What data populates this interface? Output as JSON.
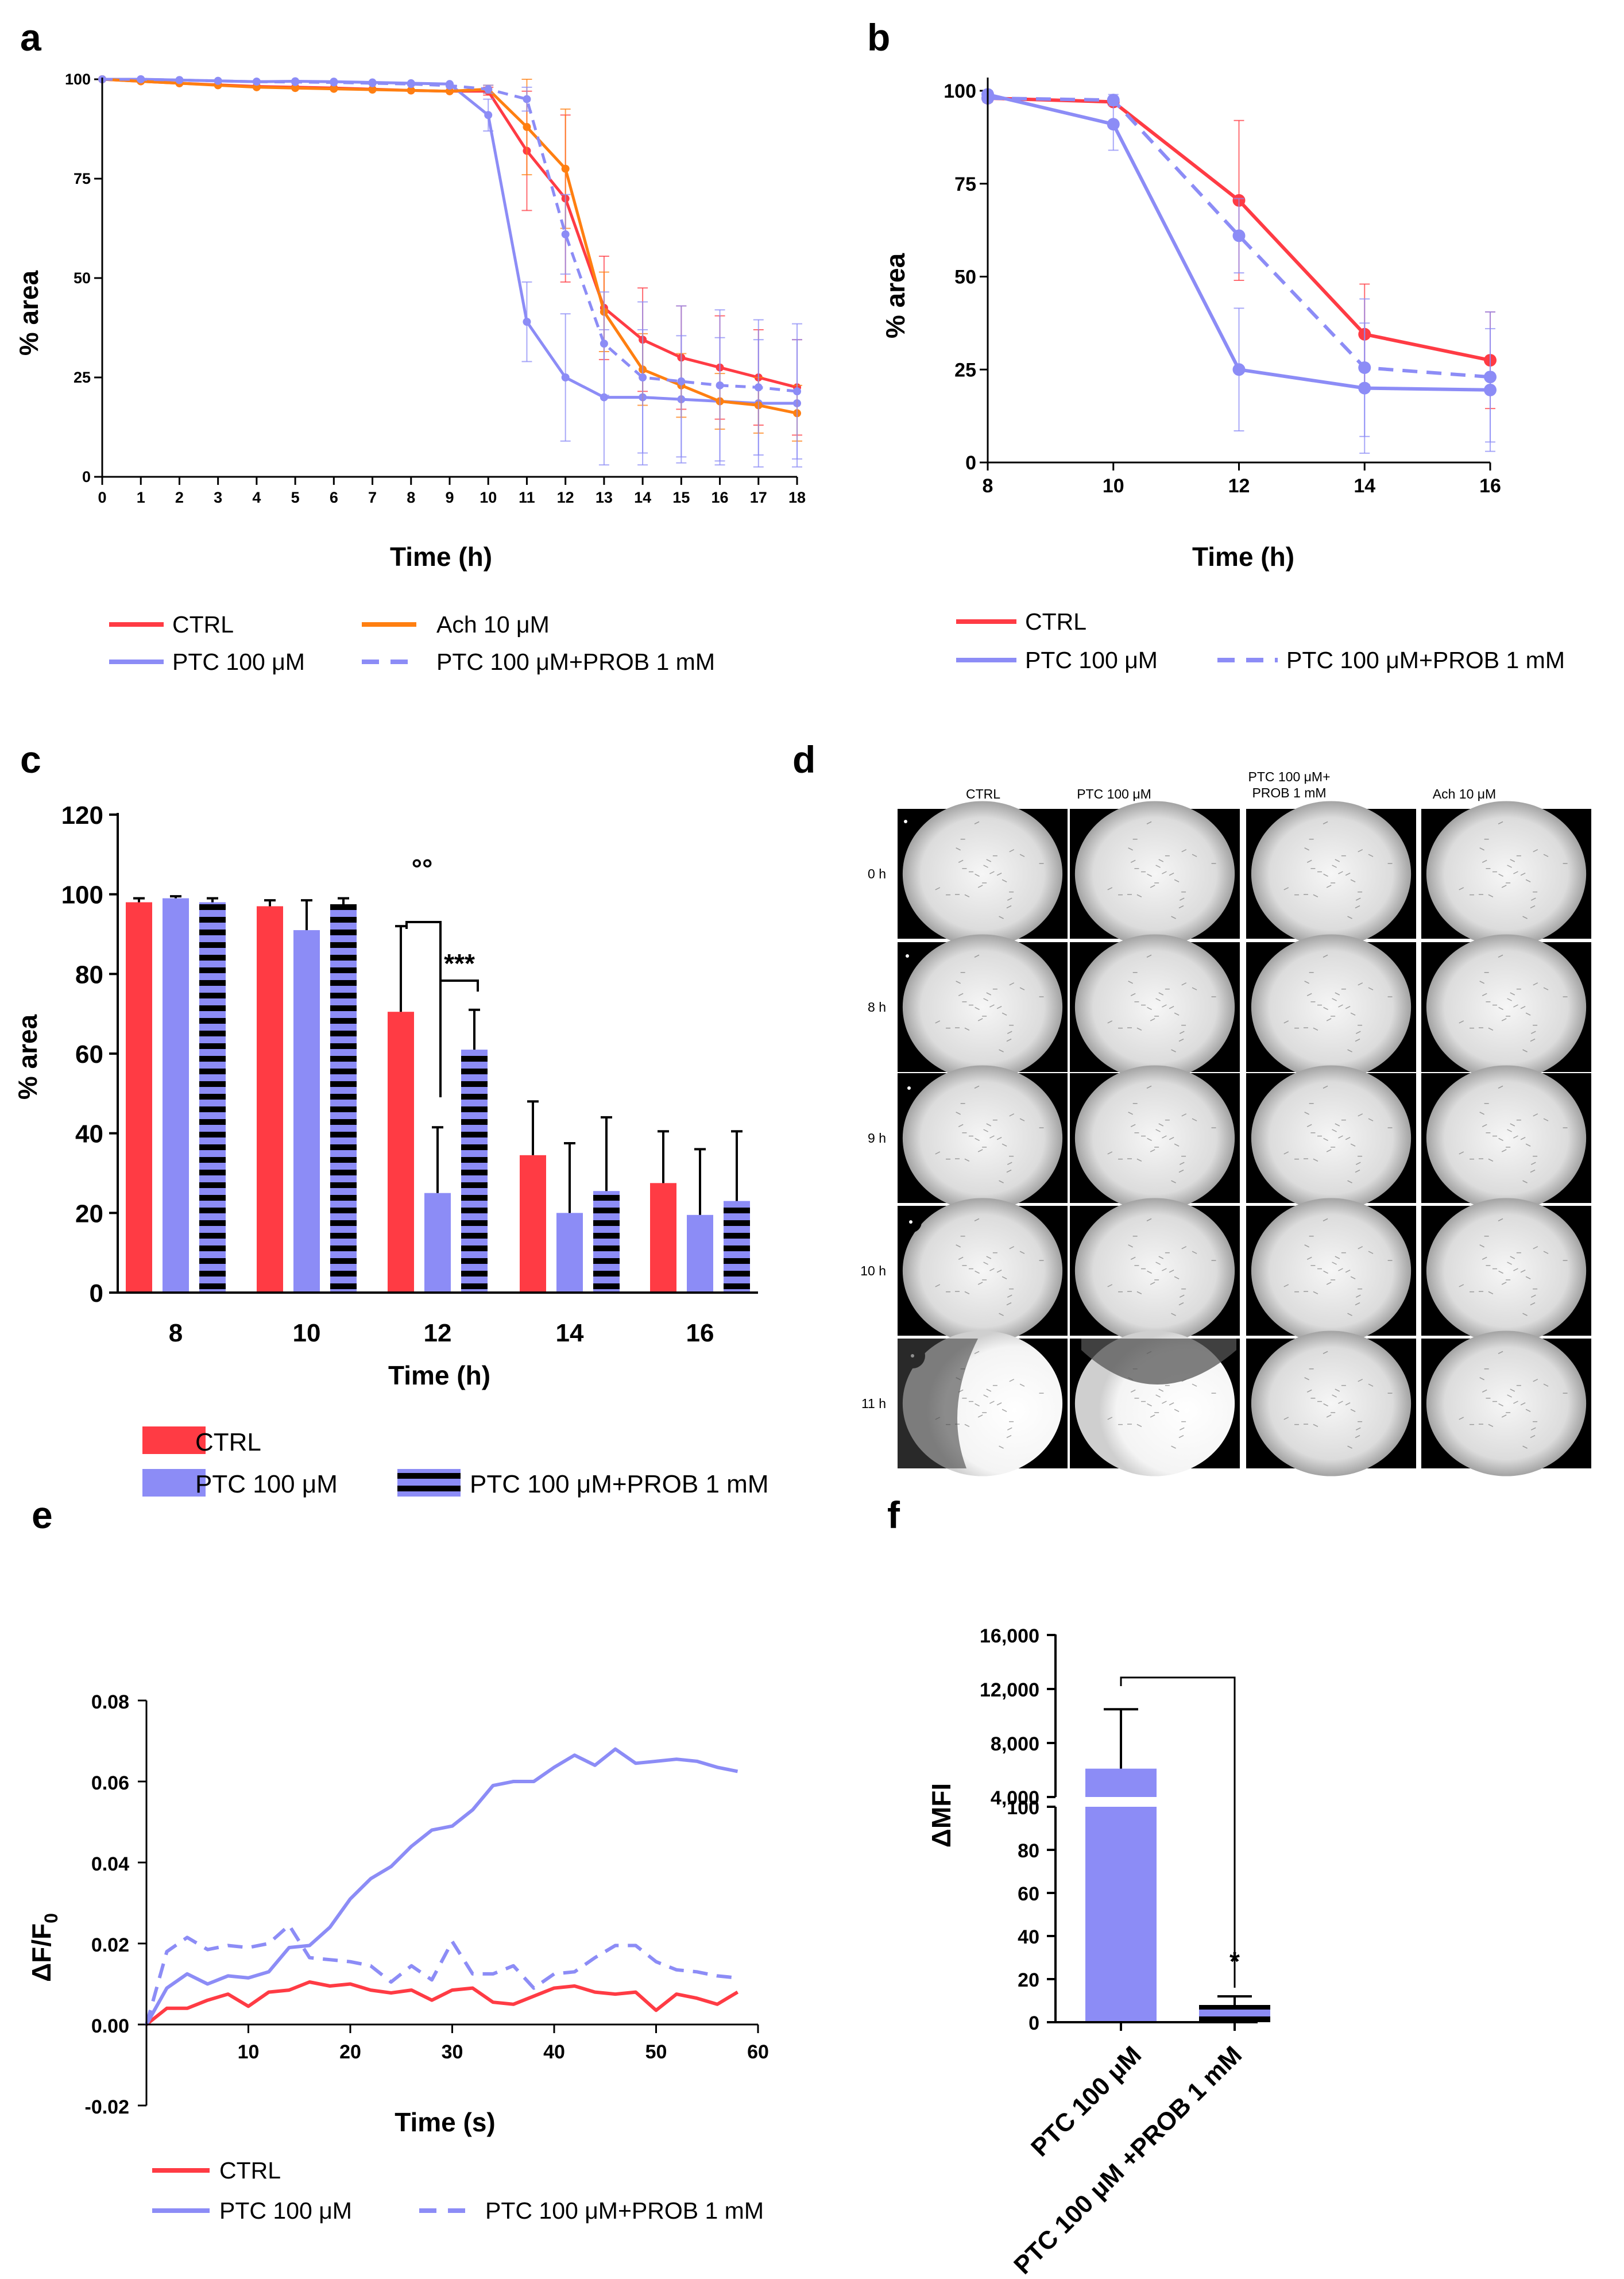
{
  "colors": {
    "ctrl": "#ff3b44",
    "ptc": "#8c8cf6",
    "ach": "#ff7f11",
    "axis": "#000000",
    "black": "#000000"
  },
  "panels": {
    "a": "a",
    "b": "b",
    "c": "c",
    "d": "d",
    "e": "e",
    "f": "f"
  },
  "chart_data": [
    {
      "panel": "a",
      "type": "line",
      "xlabel": "Time (h)",
      "ylabel": "% area",
      "xlim": [
        0,
        18
      ],
      "ylim": [
        0,
        100
      ],
      "x": [
        0,
        1,
        2,
        3,
        4,
        5,
        6,
        7,
        8,
        9,
        10,
        11,
        12,
        13,
        14,
        15,
        16,
        17,
        18
      ],
      "yticks": [
        0,
        25,
        50,
        75,
        100
      ],
      "series": [
        {
          "name": "CTRL",
          "color": "ctrl",
          "dash": false,
          "values": [
            100,
            99.5,
            99,
            98.6,
            98.2,
            98,
            97.8,
            97.5,
            97.2,
            97,
            97,
            82,
            70,
            42.5,
            34.5,
            30,
            27.5,
            25,
            22.5
          ],
          "errors": [
            0,
            0,
            0,
            0,
            0,
            0,
            0,
            0,
            0,
            0,
            1,
            15,
            21,
            13,
            13,
            13,
            13,
            12,
            12
          ]
        },
        {
          "name": "PTC 100 μM",
          "color": "ptc",
          "dash": false,
          "values": [
            100,
            100,
            99.8,
            99.6,
            99.4,
            99.5,
            99.4,
            99.2,
            99,
            98.8,
            91,
            39,
            25,
            20,
            20,
            19.5,
            19,
            18.5,
            18.5
          ],
          "errors": [
            0,
            0,
            0,
            0,
            0,
            0,
            0,
            0,
            0,
            0,
            4,
            10,
            16,
            17,
            17,
            16,
            16,
            16,
            16
          ]
        },
        {
          "name": "Ach 10 μM",
          "color": "ach",
          "dash": false,
          "values": [
            100,
            99.5,
            99,
            98.5,
            98,
            97.8,
            97.6,
            97.4,
            97.2,
            97,
            97.5,
            88,
            77.5,
            41.5,
            27,
            23,
            19,
            18,
            16
          ],
          "errors": [
            0,
            0,
            0,
            0,
            0,
            0,
            0,
            0,
            0,
            0,
            1,
            12,
            15,
            10,
            9,
            8,
            7,
            7,
            7
          ]
        },
        {
          "name": "PTC 100 μM+PROB 1 mM",
          "color": "ptc",
          "dash": true,
          "values": [
            100,
            100,
            99.8,
            99.6,
            99.4,
            99.3,
            99.2,
            99,
            98.8,
            98.4,
            97.5,
            95,
            61,
            33.5,
            25,
            24,
            23,
            22.5,
            21.5
          ],
          "errors": [
            0,
            0,
            0,
            0,
            0,
            0,
            0,
            0,
            0,
            0,
            1,
            3,
            10,
            13,
            19,
            19,
            19,
            17,
            17
          ]
        }
      ]
    },
    {
      "panel": "b",
      "type": "line",
      "xlabel": "Time (h)",
      "ylabel": "% area",
      "xlim": [
        8,
        16
      ],
      "ylim": [
        0,
        100
      ],
      "x": [
        8,
        10,
        12,
        14,
        16
      ],
      "yticks": [
        0,
        25,
        50,
        75,
        100
      ],
      "series": [
        {
          "name": "CTRL",
          "color": "ctrl",
          "dash": false,
          "values": [
            98,
            97,
            70.5,
            34.5,
            27.5
          ],
          "errors": [
            1,
            1,
            21.5,
            13.5,
            13
          ]
        },
        {
          "name": "PTC 100 μM",
          "color": "ptc",
          "dash": false,
          "values": [
            99,
            91,
            25,
            20,
            19.5
          ],
          "errors": [
            1,
            7,
            16.5,
            17.5,
            16.5
          ]
        },
        {
          "name": "PTC 100 μM+PROB 1 mM",
          "color": "ptc",
          "dash": true,
          "values": [
            98,
            97.5,
            61,
            25.5,
            23
          ],
          "errors": [
            1,
            1.5,
            10,
            18.5,
            17.5
          ]
        }
      ]
    },
    {
      "panel": "c",
      "type": "bar",
      "xlabel": "Time (h)",
      "ylabel": "% area",
      "categories": [
        "8",
        "10",
        "12",
        "14",
        "16"
      ],
      "ylim": [
        0,
        120
      ],
      "yticks": [
        0,
        20,
        40,
        60,
        80,
        100,
        120
      ],
      "series": [
        {
          "name": "CTRL",
          "color": "ctrl",
          "pattern": "solid",
          "values": [
            98,
            97,
            70.5,
            34.5,
            27.5
          ],
          "errors": [
            1,
            1.5,
            21.5,
            13.5,
            13
          ]
        },
        {
          "name": "PTC 100 μM",
          "color": "ptc",
          "pattern": "solid",
          "values": [
            99,
            91,
            25,
            20,
            19.5
          ],
          "errors": [
            0.5,
            7.5,
            16.5,
            17.5,
            16.5
          ]
        },
        {
          "name": "PTC 100 μM+PROB 1 mM",
          "color": "ptc",
          "pattern": "striped",
          "values": [
            98,
            97.5,
            61,
            25.5,
            23
          ],
          "errors": [
            1,
            1.5,
            10,
            18.5,
            17.5
          ]
        }
      ],
      "annotations": [
        {
          "text": "°°",
          "category": "12",
          "between": [
            "CTRL",
            "PTC 100 μM"
          ]
        },
        {
          "text": "***",
          "category": "12",
          "between": [
            "PTC 100 μM",
            "PTC 100 μM+PROB 1 mM"
          ]
        }
      ]
    },
    {
      "panel": "e",
      "type": "line",
      "xlabel": "Time (s)",
      "ylabel": "ΔF/F",
      "ylabel_sub": "0",
      "xlim": [
        0,
        60
      ],
      "ylim": [
        -0.02,
        0.08
      ],
      "xticks": [
        10,
        20,
        30,
        40,
        50,
        60
      ],
      "yticks": [
        "-0.02",
        "0.00",
        "0.02",
        "0.04",
        "0.06",
        "0.08"
      ],
      "x": [
        0,
        2,
        4,
        6,
        8,
        10,
        12,
        14,
        16,
        18,
        20,
        22,
        24,
        26,
        28,
        30,
        32,
        34,
        36,
        38,
        40,
        42,
        44,
        46,
        48,
        50,
        52,
        54,
        56,
        58
      ],
      "series": [
        {
          "name": "CTRL",
          "color": "ctrl",
          "dash": false,
          "values": [
            0,
            0.004,
            0.004,
            0.006,
            0.0075,
            0.0045,
            0.008,
            0.0085,
            0.0105,
            0.0095,
            0.01,
            0.0085,
            0.0078,
            0.0085,
            0.006,
            0.0085,
            0.009,
            0.0055,
            0.005,
            0.007,
            0.009,
            0.0095,
            0.008,
            0.0075,
            0.008,
            0.0035,
            0.0075,
            0.0065,
            0.005,
            0.008
          ]
        },
        {
          "name": "PTC 100 μM",
          "color": "ptc",
          "dash": false,
          "values": [
            0,
            0.009,
            0.0125,
            0.01,
            0.012,
            0.0115,
            0.013,
            0.019,
            0.0195,
            0.024,
            0.031,
            0.036,
            0.039,
            0.044,
            0.048,
            0.049,
            0.053,
            0.059,
            0.06,
            0.06,
            0.0635,
            0.0665,
            0.064,
            0.068,
            0.0645,
            0.065,
            0.0655,
            0.065,
            0.0635,
            0.0625
          ]
        },
        {
          "name": "PTC 100 μM+PROB 1 mM",
          "color": "ptc",
          "dash": true,
          "values": [
            0,
            0.018,
            0.0215,
            0.0185,
            0.0195,
            0.019,
            0.02,
            0.0245,
            0.0165,
            0.016,
            0.0155,
            0.0145,
            0.0105,
            0.0145,
            0.011,
            0.0205,
            0.0125,
            0.0125,
            0.0145,
            0.009,
            0.0125,
            0.013,
            0.0165,
            0.0195,
            0.0195,
            0.0155,
            0.0135,
            0.013,
            0.012,
            0.0115
          ]
        }
      ]
    },
    {
      "panel": "f",
      "type": "bar",
      "ylabel": "ΔMFI",
      "axis_break": true,
      "upper_ylim": [
        4000,
        16000
      ],
      "upper_yticks": [
        "4,000",
        "8,000",
        "12,000",
        "16,000"
      ],
      "lower_ylim": [
        0,
        100
      ],
      "lower_yticks": [
        "0",
        "20",
        "40",
        "60",
        "80",
        "100"
      ],
      "categories": [
        "PTC 100 μM",
        "PTC 100 μM +PROB 1 mM"
      ],
      "values": [
        6100,
        8
      ],
      "errors": [
        4400,
        4
      ],
      "significance": "*"
    }
  ],
  "legends": {
    "a": [
      "CTRL",
      "Ach 10 μM",
      "PTC 100 μM",
      "PTC 100 μM+PROB 1 mM"
    ],
    "b": [
      "CTRL",
      "PTC 100 μM",
      "PTC 100 μM+PROB 1 mM"
    ],
    "c": [
      "CTRL",
      "PTC 100 μM",
      "PTC 100 μM+PROB 1 mM"
    ],
    "e": [
      "CTRL",
      "PTC 100 μM",
      "PTC 100 μM+PROB 1 mM"
    ]
  },
  "image_grid": {
    "columns": [
      "CTRL",
      "PTC 100 μM",
      "PTC 100 μM+",
      "PROB 1 mM",
      "Ach 10 μM"
    ],
    "rows": [
      "0 h",
      "8 h",
      "9 h",
      "10 h",
      "11 h"
    ]
  }
}
